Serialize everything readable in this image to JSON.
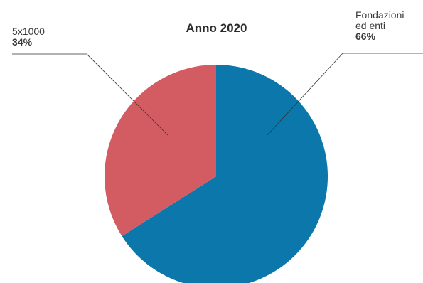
{
  "chart_data": {
    "type": "pie",
    "title": "Anno 2020",
    "slices": [
      {
        "label": "Fondazioni\ned enti",
        "value": 66,
        "value_label": "66%",
        "color": "#0b77aa"
      },
      {
        "label": "5x1000",
        "value": 34,
        "value_label": "34%",
        "color": "#d35c62"
      }
    ],
    "start_angle_deg": 0,
    "direction": "clockwise",
    "legend": "none"
  }
}
